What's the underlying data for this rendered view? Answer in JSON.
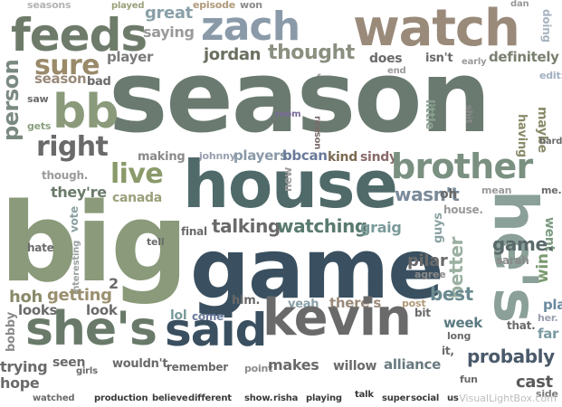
{
  "cloud": {
    "words": [
      {
        "text": "seasons",
        "color": "#b3b3b3"
      },
      {
        "text": "played",
        "color": "#9aa07a"
      },
      {
        "text": "episode",
        "color": "#b09a7a"
      },
      {
        "text": "won",
        "color": "#8a8a8a"
      },
      {
        "text": "dan",
        "color": "#9a9a9a"
      },
      {
        "text": "feeds",
        "color": "#6e7b6a"
      },
      {
        "text": "great",
        "color": "#8aa0a8"
      },
      {
        "text": "saying",
        "color": "#9a9a9a"
      },
      {
        "text": "zach",
        "color": "#8a9aa8"
      },
      {
        "text": "watch",
        "color": "#9a8a7a"
      },
      {
        "text": "doing",
        "color": "#a8b4c0"
      },
      {
        "text": "sure",
        "color": "#9a8a6a"
      },
      {
        "text": "player",
        "color": "#7a7a7a"
      },
      {
        "text": "jordan",
        "color": "#6a7060"
      },
      {
        "text": "thought",
        "color": "#8a9080"
      },
      {
        "text": "does",
        "color": "#6a6a6a"
      },
      {
        "text": "isn't",
        "color": "#6a6a6a"
      },
      {
        "text": "early",
        "color": "#9a9a9a"
      },
      {
        "text": "definitely",
        "color": "#7a8070"
      },
      {
        "text": "person",
        "color": "#7a8a80"
      },
      {
        "text": "season.",
        "color": "#9a8a7a"
      },
      {
        "text": "bad",
        "color": "#6a6a6a"
      },
      {
        "text": "fan",
        "color": "#9a9a9a"
      },
      {
        "text": "end",
        "color": "#9a9a9a"
      },
      {
        "text": "edit:",
        "color": "#a0b0c0"
      },
      {
        "text": "season",
        "color": "#6a7a70"
      },
      {
        "text": "bb",
        "color": "#8a9a7a"
      },
      {
        "text": "saw",
        "color": "#6a6a6a"
      },
      {
        "text": "room",
        "color": "#7a6a9a"
      },
      {
        "text": "little",
        "color": "#8aa090"
      },
      {
        "text": "shit",
        "color": "#8a8a8a"
      },
      {
        "text": "maybe",
        "color": "#8a8a6a"
      },
      {
        "text": "gets",
        "color": "#8aa080"
      },
      {
        "text": "reason",
        "color": "#7a6a6a"
      },
      {
        "text": "having",
        "color": "#8a8a6a"
      },
      {
        "text": "hard",
        "color": "#6a6a6a"
      },
      {
        "text": "right",
        "color": "#6a6a6a"
      },
      {
        "text": "making",
        "color": "#8a8a8a"
      },
      {
        "text": "johnny",
        "color": "#9aa0b0"
      },
      {
        "text": "players",
        "color": "#8a9aa8"
      },
      {
        "text": "bbcan",
        "color": "#6a7a9a"
      },
      {
        "text": "kind",
        "color": "#7a6a50"
      },
      {
        "text": "sindy",
        "color": "#8a6a6a"
      },
      {
        "text": "brother",
        "color": "#7a9080"
      },
      {
        "text": "live",
        "color": "#8a9a6a"
      },
      {
        "text": "though.",
        "color": "#9a9a9a"
      },
      {
        "text": "house",
        "color": "#506a6a"
      },
      {
        "text": "new",
        "color": "#9a9a9a"
      },
      {
        "text": "mean",
        "color": "#9a9a9a"
      },
      {
        "text": "me.",
        "color": "#6a6a6a"
      },
      {
        "text": "they're",
        "color": "#6a7a6a"
      },
      {
        "text": "canada",
        "color": "#9aa07a"
      },
      {
        "text": "wasn't",
        "color": "#7a8a9a"
      },
      {
        "text": "oh",
        "color": "#6a6a6a"
      },
      {
        "text": "vote",
        "color": "#8aa0a0"
      },
      {
        "text": "talking",
        "color": "#6a6a6a"
      },
      {
        "text": "watching",
        "color": "#5a7a70"
      },
      {
        "text": "graig",
        "color": "#7a9a9a"
      },
      {
        "text": "house.",
        "color": "#9a9a9a"
      },
      {
        "text": "he's",
        "color": "#8aa098"
      },
      {
        "text": "went",
        "color": "#7a9a80"
      },
      {
        "text": "big",
        "color": "#8a9a7a"
      },
      {
        "text": "interesting",
        "color": "#9aa0a0"
      },
      {
        "text": "final",
        "color": "#6a6a6a"
      },
      {
        "text": "guys",
        "color": "#8aa0a0"
      },
      {
        "text": "game.",
        "color": "#5a6a6a"
      },
      {
        "text": "hate",
        "color": "#6a6a6a"
      },
      {
        "text": "tell",
        "color": "#6a6a6a"
      },
      {
        "text": "game",
        "color": "#3a5060"
      },
      {
        "text": "sarah",
        "color": "#8a8a8a"
      },
      {
        "text": "better",
        "color": "#9ab0a0"
      },
      {
        "text": "pilar",
        "color": "#6a6a6a"
      },
      {
        "text": "agree",
        "color": "#8a8a8a"
      },
      {
        "text": "win",
        "color": "#7a9a70"
      },
      {
        "text": "2",
        "color": "#6a6a6a"
      },
      {
        "text": "hoh",
        "color": "#8a8a6a"
      },
      {
        "text": "getting",
        "color": "#9a9070"
      },
      {
        "text": "him.",
        "color": "#6a6a6a"
      },
      {
        "text": "there's",
        "color": "#9a8a7a"
      },
      {
        "text": "post",
        "color": "#b09a7a"
      },
      {
        "text": "best",
        "color": "#6a8a90"
      },
      {
        "text": "play",
        "color": "#6a8aa0"
      },
      {
        "text": "looks",
        "color": "#6a6a6a"
      },
      {
        "text": "look",
        "color": "#6a6a6a"
      },
      {
        "text": "lol",
        "color": "#7a9a9a"
      },
      {
        "text": "come",
        "color": "#6a7a9a"
      },
      {
        "text": "yeah",
        "color": "#8aa0a8"
      },
      {
        "text": "bit",
        "color": "#6a6a6a"
      },
      {
        "text": "week",
        "color": "#5a7a80"
      },
      {
        "text": "her.",
        "color": "#9aa0b0"
      },
      {
        "text": "bobby",
        "color": "#8a8a8a"
      },
      {
        "text": "she's",
        "color": "#6a7a6a"
      },
      {
        "text": "said",
        "color": "#3a5060"
      },
      {
        "text": "kevin",
        "color": "#6a6a6a"
      },
      {
        "text": "long",
        "color": "#6a6a6a"
      },
      {
        "text": "that.",
        "color": "#6a6a6a"
      },
      {
        "text": "far",
        "color": "#7a9aa0"
      },
      {
        "text": "it,",
        "color": "#6a6a6a"
      },
      {
        "text": "probably",
        "color": "#4a5a6a"
      },
      {
        "text": "trying",
        "color": "#6a6a6a"
      },
      {
        "text": "seen",
        "color": "#6a6a6a"
      },
      {
        "text": "wouldn't",
        "color": "#6a6a6a"
      },
      {
        "text": "remember",
        "color": "#6a6a6a"
      },
      {
        "text": "point",
        "color": "#8a8a8a"
      },
      {
        "text": "makes",
        "color": "#6a6a6a"
      },
      {
        "text": "willow",
        "color": "#6a6a6a"
      },
      {
        "text": "alliance",
        "color": "#6a7a80"
      },
      {
        "text": "girls",
        "color": "#6a6a6a"
      },
      {
        "text": "hope",
        "color": "#6a6a6a"
      },
      {
        "text": "fun",
        "color": "#6a6a6a"
      },
      {
        "text": "cast",
        "color": "#5a5a5a"
      },
      {
        "text": "watched",
        "color": "#6a6a6a"
      },
      {
        "text": "production",
        "color": "#3a3a3a"
      },
      {
        "text": "believe",
        "color": "#3a3a3a"
      },
      {
        "text": "different",
        "color": "#3a3a3a"
      },
      {
        "text": "show.",
        "color": "#3a3a3a"
      },
      {
        "text": "risha",
        "color": "#3a3a3a"
      },
      {
        "text": "playing",
        "color": "#3a3a3a"
      },
      {
        "text": "talk",
        "color": "#3a3a3a"
      },
      {
        "text": "super",
        "color": "#3a3a3a"
      },
      {
        "text": "social",
        "color": "#3a3a3a"
      },
      {
        "text": "us",
        "color": "#3a3a3a"
      },
      {
        "text": "side",
        "color": "#7a7a7a"
      }
    ]
  },
  "watermark": {
    "text": "VisualLightBox.com"
  }
}
